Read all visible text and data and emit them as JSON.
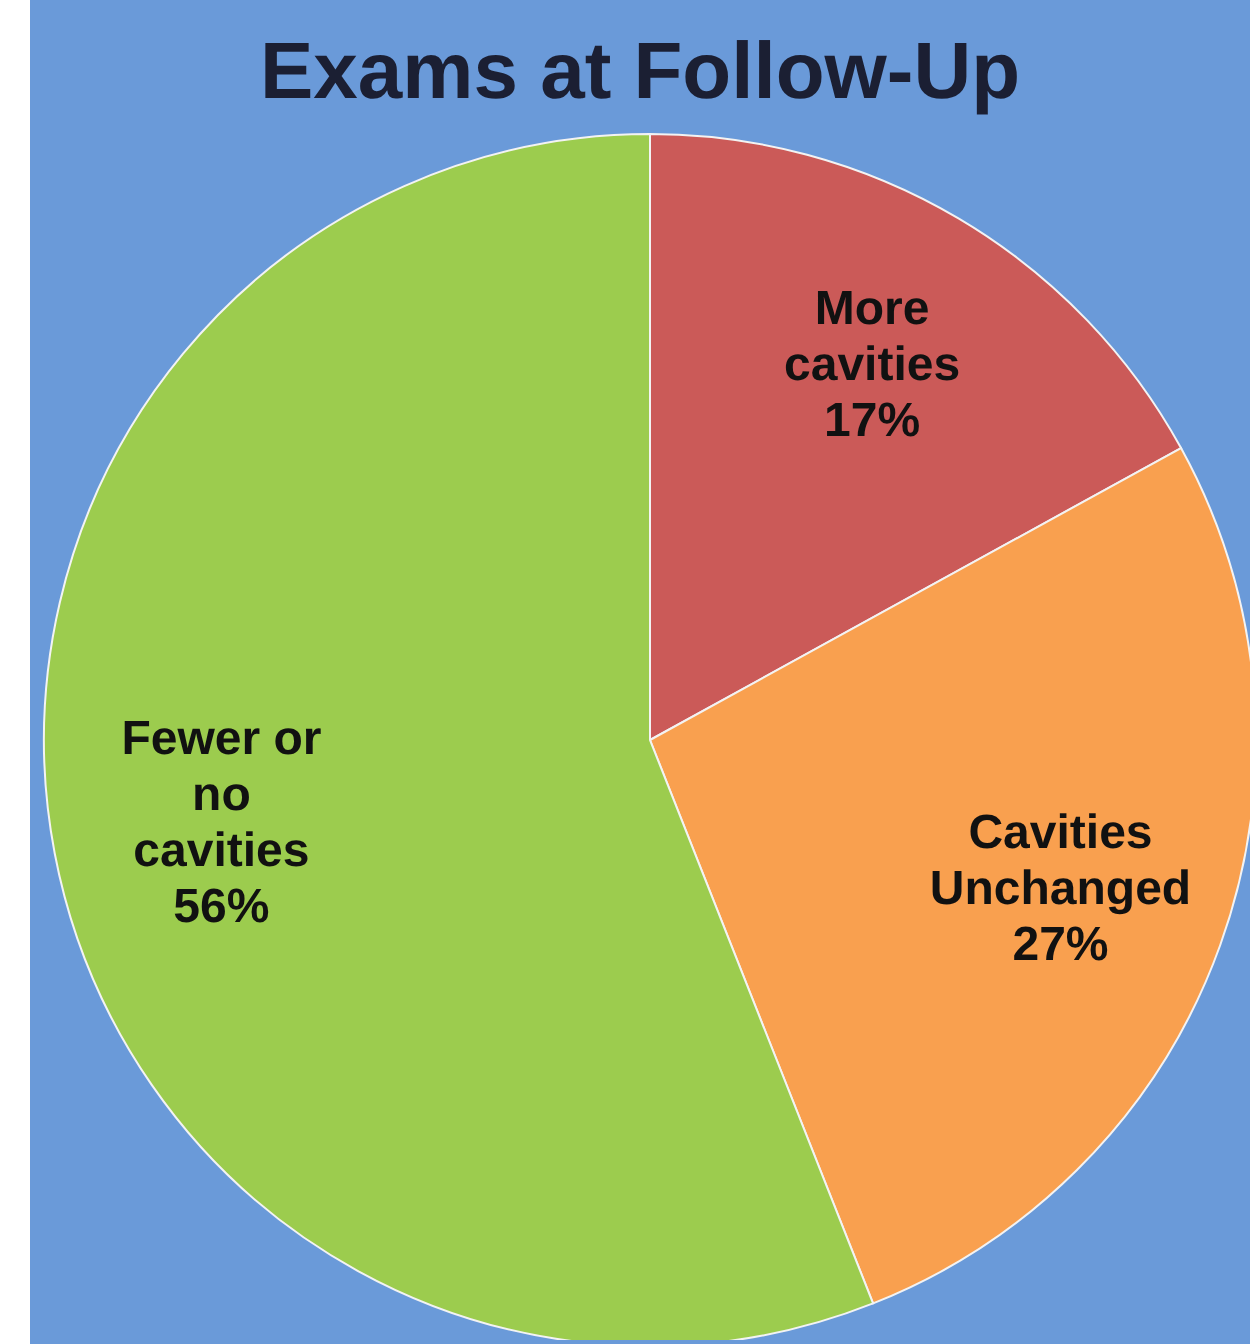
{
  "chart_data": {
    "type": "pie",
    "title": "Exams at Follow-Up",
    "categories": [
      "More cavities",
      "Cavities Unchanged",
      "Fewer or no cavities"
    ],
    "values": [
      17,
      27,
      56
    ],
    "value_labels": [
      "17%",
      "27%",
      "56%"
    ],
    "colors": [
      "#cb5a58",
      "#f9a04f",
      "#9ccc4e"
    ],
    "legend": false
  }
}
